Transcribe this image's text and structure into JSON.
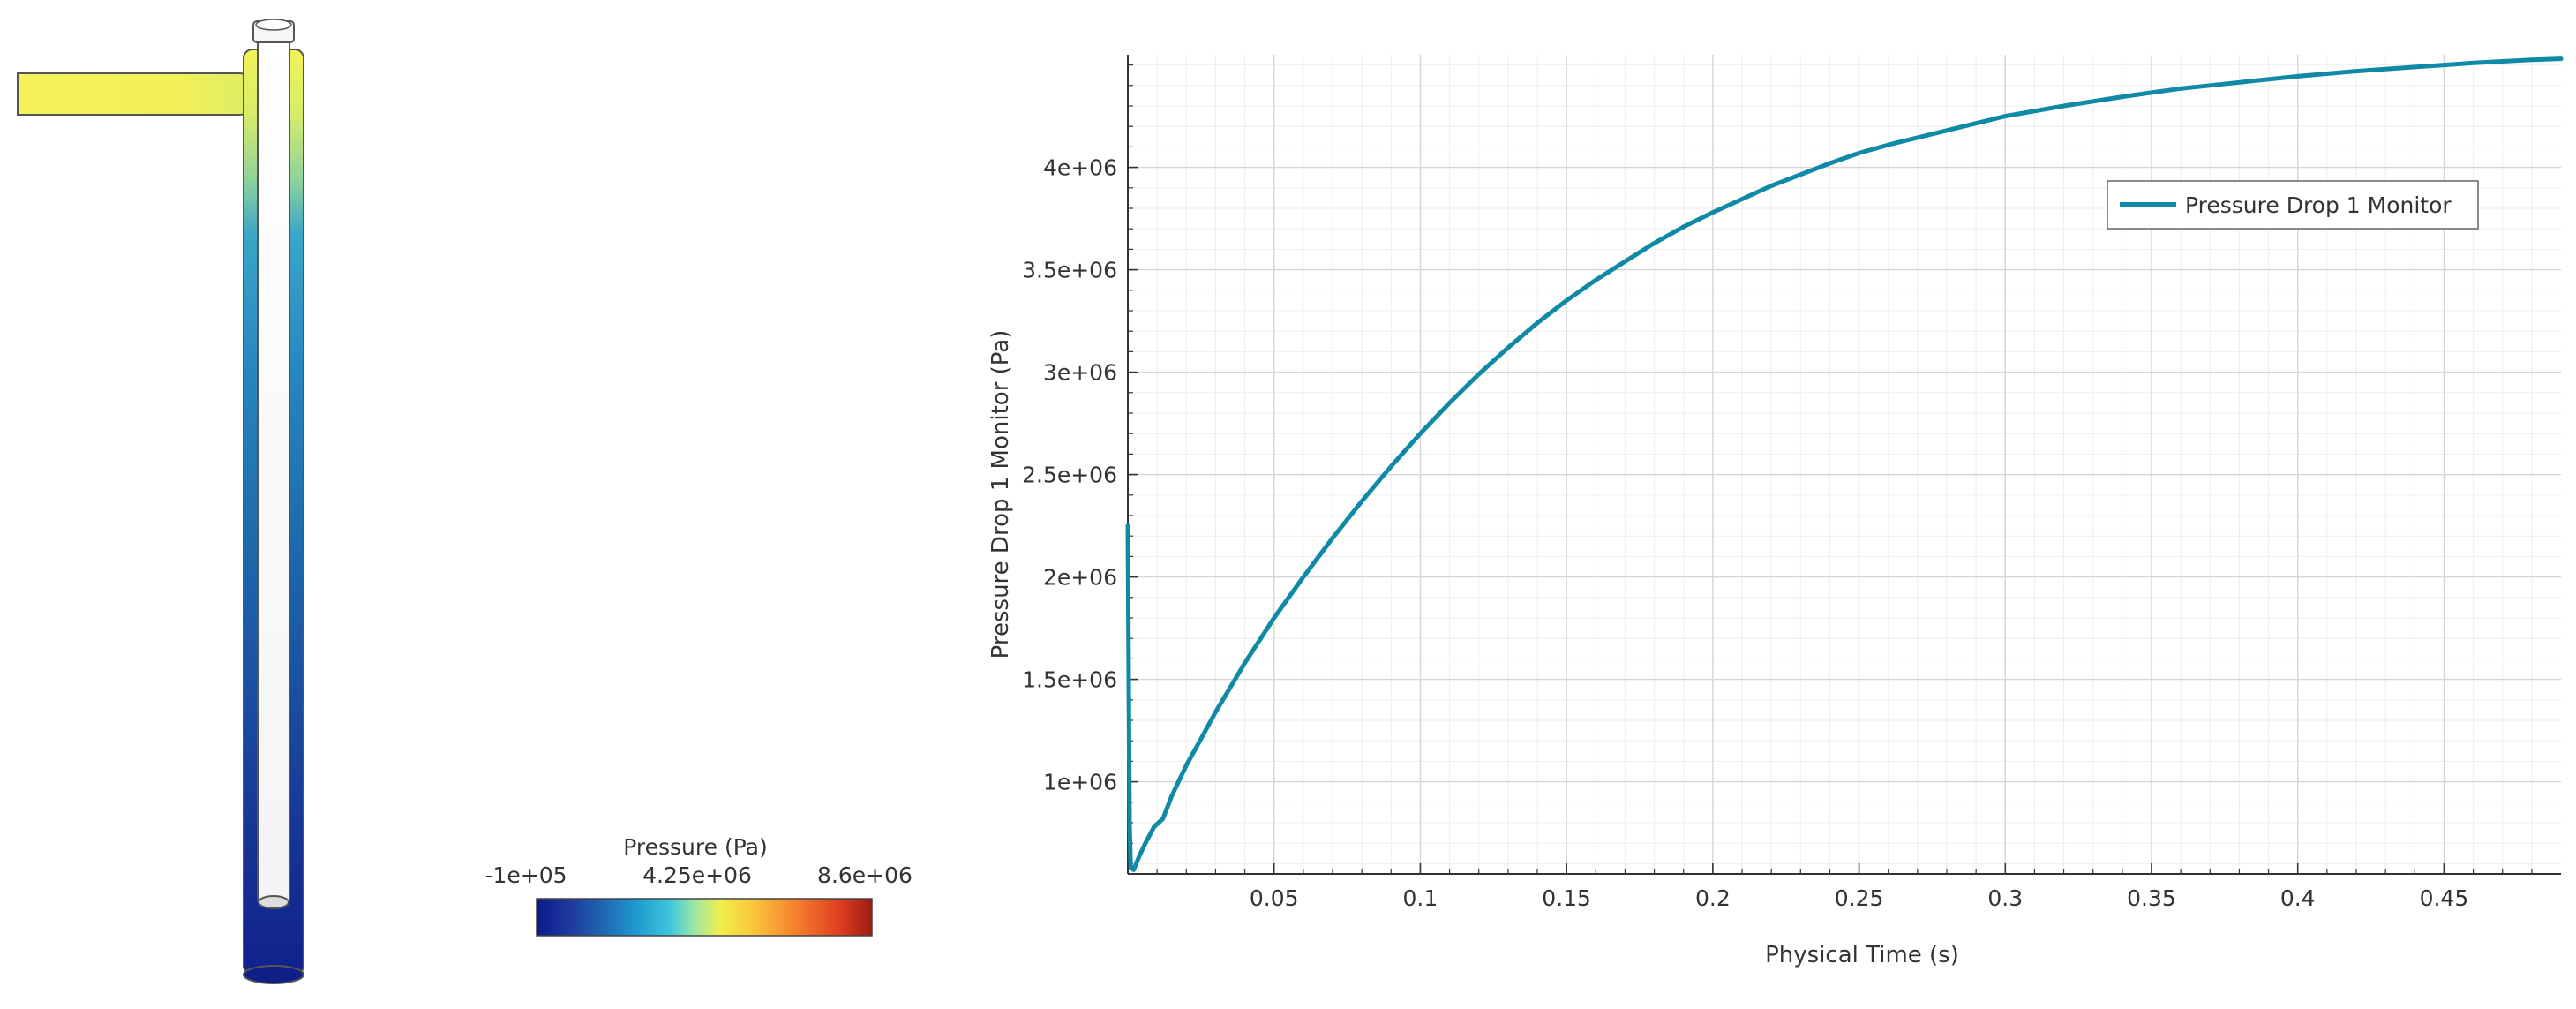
{
  "contour": {
    "colorbar": {
      "title": "Pressure (Pa)",
      "min_label": "-1e+05",
      "mid_label": "4.25e+06",
      "max_label": "8.6e+06",
      "min": -100000,
      "max": 8600000,
      "colormap": [
        "#0c1a8a",
        "#1e3a9e",
        "#1f67b3",
        "#1f9bd0",
        "#3ec7dc",
        "#9ee6a6",
        "#f2ef4a",
        "#f9c43a",
        "#f47c2c",
        "#e04022",
        "#9e1b14"
      ]
    },
    "tube_colors": {
      "inlet": "#f2f257",
      "top": "#d7ec6a",
      "upper": "#3aa6c8",
      "middle": "#1f6fb0",
      "lower": "#1a3e9a",
      "bottom": "#10218d"
    }
  },
  "chart_data": {
    "type": "line",
    "title": "",
    "xlabel": "Physical Time (s)",
    "ylabel": "Pressure Drop 1 Monitor (Pa)",
    "xlim": [
      0,
      0.49
    ],
    "ylim": [
      550000,
      4550000
    ],
    "xticks": [
      0.05,
      0.1,
      0.15,
      0.2,
      0.25,
      0.3,
      0.35,
      0.4,
      0.45
    ],
    "xtick_labels": [
      "0.05",
      "0.1",
      "0.15",
      "0.2",
      "0.25",
      "0.3",
      "0.35",
      "0.4",
      "0.45"
    ],
    "yticks": [
      1000000,
      1500000,
      2000000,
      2500000,
      3000000,
      3500000,
      4000000
    ],
    "ytick_labels": [
      "1e+06",
      "1.5e+06",
      "2e+06",
      "2.5e+06",
      "3e+06",
      "3.5e+06",
      "4e+06"
    ],
    "grid": true,
    "legend_position": "top-right",
    "series": [
      {
        "name": "Pressure Drop 1 Monitor",
        "color": "#0e8aa6",
        "x": [
          0,
          0.0003,
          0.0006,
          0.001,
          0.002,
          0.004,
          0.006,
          0.009,
          0.012,
          0.015,
          0.02,
          0.025,
          0.03,
          0.04,
          0.05,
          0.06,
          0.07,
          0.08,
          0.09,
          0.1,
          0.11,
          0.12,
          0.13,
          0.14,
          0.15,
          0.16,
          0.17,
          0.18,
          0.19,
          0.2,
          0.22,
          0.24,
          0.25,
          0.26,
          0.28,
          0.3,
          0.32,
          0.34,
          0.35,
          0.36,
          0.38,
          0.4,
          0.42,
          0.44,
          0.45,
          0.46,
          0.48,
          0.49
        ],
        "y": [
          2250000,
          1500000,
          800000,
          580000,
          570000,
          640000,
          700000,
          780000,
          820000,
          930000,
          1080000,
          1210000,
          1340000,
          1580000,
          1800000,
          2000000,
          2190000,
          2370000,
          2540000,
          2700000,
          2850000,
          2990000,
          3120000,
          3240000,
          3350000,
          3450000,
          3540000,
          3630000,
          3710000,
          3780000,
          3910000,
          4020000,
          4070000,
          4110000,
          4180000,
          4250000,
          4300000,
          4345000,
          4365000,
          4385000,
          4415000,
          4445000,
          4470000,
          4490000,
          4500000,
          4510000,
          4525000,
          4530000
        ]
      }
    ]
  }
}
